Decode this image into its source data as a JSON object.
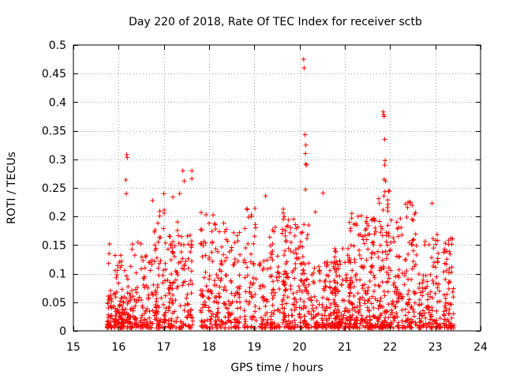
{
  "chart_data": {
    "type": "scatter",
    "title": "Day 220 of 2018, Rate Of TEC Index for receiver sctb",
    "xlabel": "GPS time / hours",
    "ylabel": "ROTI / TECUs",
    "xlim": [
      15,
      24
    ],
    "ylim": [
      0,
      0.5
    ],
    "xticks": [
      15,
      16,
      17,
      18,
      19,
      20,
      21,
      22,
      23,
      24
    ],
    "yticks": [
      0,
      0.05,
      0.1,
      0.15,
      0.2,
      0.25,
      0.3,
      0.35,
      0.4,
      0.45,
      0.5
    ],
    "grid": true,
    "marker": "+",
    "series": [
      {
        "name": "ROTI",
        "color": "#ff0000",
        "outliers": [
          {
            "x": 16.18,
            "y": 0.308
          },
          {
            "x": 16.19,
            "y": 0.303
          },
          {
            "x": 16.16,
            "y": 0.264
          },
          {
            "x": 16.17,
            "y": 0.24
          },
          {
            "x": 17.42,
            "y": 0.28
          },
          {
            "x": 17.62,
            "y": 0.28
          },
          {
            "x": 17.62,
            "y": 0.266
          },
          {
            "x": 17.35,
            "y": 0.24
          },
          {
            "x": 17.45,
            "y": 0.262
          },
          {
            "x": 17.2,
            "y": 0.234
          },
          {
            "x": 17.0,
            "y": 0.24
          },
          {
            "x": 16.75,
            "y": 0.228
          },
          {
            "x": 20.09,
            "y": 0.475
          },
          {
            "x": 20.1,
            "y": 0.46
          },
          {
            "x": 20.12,
            "y": 0.343
          },
          {
            "x": 20.14,
            "y": 0.325
          },
          {
            "x": 20.13,
            "y": 0.31
          },
          {
            "x": 20.14,
            "y": 0.292
          },
          {
            "x": 20.15,
            "y": 0.29
          },
          {
            "x": 20.13,
            "y": 0.247
          },
          {
            "x": 20.52,
            "y": 0.241
          },
          {
            "x": 19.25,
            "y": 0.236
          },
          {
            "x": 21.85,
            "y": 0.383
          },
          {
            "x": 21.87,
            "y": 0.375
          },
          {
            "x": 21.86,
            "y": 0.378
          },
          {
            "x": 21.88,
            "y": 0.335
          },
          {
            "x": 21.89,
            "y": 0.298
          },
          {
            "x": 21.88,
            "y": 0.29
          },
          {
            "x": 21.87,
            "y": 0.265
          },
          {
            "x": 21.9,
            "y": 0.262
          },
          {
            "x": 22.93,
            "y": 0.223
          },
          {
            "x": 22.43,
            "y": 0.225
          },
          {
            "x": 15.8,
            "y": 0.152
          },
          {
            "x": 15.79,
            "y": 0.135
          },
          {
            "x": 15.78,
            "y": 0.118
          },
          {
            "x": 20.35,
            "y": 0.208
          }
        ],
        "clusters": [
          {
            "x": 15.8,
            "w": 0.06,
            "top": 0.07,
            "n": 40
          },
          {
            "x": 15.98,
            "w": 0.1,
            "top": 0.13,
            "n": 55
          },
          {
            "x": 16.15,
            "w": 0.12,
            "top": 0.11,
            "n": 60
          },
          {
            "x": 16.4,
            "w": 0.14,
            "top": 0.15,
            "n": 55
          },
          {
            "x": 16.65,
            "w": 0.12,
            "top": 0.13,
            "n": 50
          },
          {
            "x": 16.92,
            "w": 0.14,
            "top": 0.21,
            "n": 75
          },
          {
            "x": 17.22,
            "w": 0.14,
            "top": 0.19,
            "n": 70
          },
          {
            "x": 17.5,
            "w": 0.14,
            "top": 0.17,
            "n": 65
          },
          {
            "x": 17.95,
            "w": 0.14,
            "top": 0.21,
            "n": 70
          },
          {
            "x": 18.25,
            "w": 0.14,
            "top": 0.19,
            "n": 70
          },
          {
            "x": 18.55,
            "w": 0.14,
            "top": 0.17,
            "n": 65
          },
          {
            "x": 18.9,
            "w": 0.14,
            "top": 0.21,
            "n": 60
          },
          {
            "x": 19.2,
            "w": 0.1,
            "top": 0.12,
            "n": 40
          },
          {
            "x": 19.45,
            "w": 0.12,
            "top": 0.18,
            "n": 60
          },
          {
            "x": 19.75,
            "w": 0.14,
            "top": 0.21,
            "n": 85
          },
          {
            "x": 20.05,
            "w": 0.16,
            "top": 0.19,
            "n": 90
          },
          {
            "x": 20.35,
            "w": 0.1,
            "top": 0.12,
            "n": 40
          },
          {
            "x": 20.65,
            "w": 0.16,
            "top": 0.12,
            "n": 90
          },
          {
            "x": 20.95,
            "w": 0.18,
            "top": 0.14,
            "n": 100
          },
          {
            "x": 21.25,
            "w": 0.16,
            "top": 0.21,
            "n": 95
          },
          {
            "x": 21.55,
            "w": 0.14,
            "top": 0.2,
            "n": 90
          },
          {
            "x": 21.85,
            "w": 0.14,
            "top": 0.25,
            "n": 100
          },
          {
            "x": 22.15,
            "w": 0.14,
            "top": 0.21,
            "n": 70
          },
          {
            "x": 22.45,
            "w": 0.14,
            "top": 0.22,
            "n": 75
          },
          {
            "x": 22.75,
            "w": 0.12,
            "top": 0.16,
            "n": 55
          },
          {
            "x": 23.0,
            "w": 0.12,
            "top": 0.18,
            "n": 60
          },
          {
            "x": 23.3,
            "w": 0.12,
            "top": 0.16,
            "n": 70
          }
        ]
      }
    ]
  }
}
